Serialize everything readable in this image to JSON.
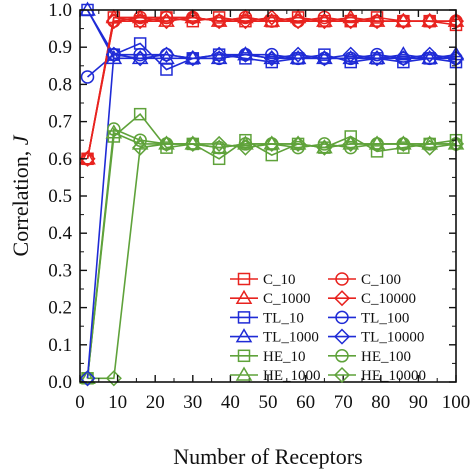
{
  "chart_data": {
    "type": "line",
    "xlabel": "Number of Receptors",
    "ylabel": "Correlation, ",
    "ylabel_italic": "J",
    "xlim": [
      0,
      100
    ],
    "ylim": [
      0.0,
      1.0
    ],
    "xticks": [
      0,
      10,
      20,
      30,
      40,
      50,
      60,
      70,
      80,
      90,
      100
    ],
    "yticks": [
      0.0,
      0.1,
      0.2,
      0.3,
      0.4,
      0.5,
      0.6,
      0.7,
      0.8,
      0.9,
      1.0
    ],
    "xtick_labels": [
      "0",
      "10",
      "20",
      "30",
      "40",
      "50",
      "60",
      "70",
      "80",
      "90",
      "100"
    ],
    "ytick_labels": [
      "0.0",
      "0.1",
      "0.2",
      "0.3",
      "0.4",
      "0.5",
      "0.6",
      "0.7",
      "0.8",
      "0.9",
      "1.0"
    ],
    "legend_position": "lower-right",
    "x": [
      2,
      9,
      16,
      23,
      30,
      37,
      44,
      51,
      58,
      65,
      72,
      79,
      86,
      93,
      100
    ],
    "series": [
      {
        "name": "C_10",
        "color": "#e8231f",
        "marker": "square",
        "values": [
          0.6,
          0.98,
          0.97,
          0.98,
          0.97,
          0.98,
          0.97,
          0.97,
          0.98,
          0.97,
          0.97,
          0.98,
          0.97,
          0.97,
          0.96
        ]
      },
      {
        "name": "C_100",
        "color": "#e8231f",
        "marker": "circle",
        "values": [
          0.6,
          0.97,
          0.98,
          0.98,
          0.98,
          0.97,
          0.98,
          0.97,
          0.97,
          0.98,
          0.97,
          0.97,
          0.97,
          0.97,
          0.97
        ]
      },
      {
        "name": "C_1000",
        "color": "#e8231f",
        "marker": "triangle",
        "values": [
          0.6,
          0.98,
          0.98,
          0.97,
          0.98,
          0.97,
          0.98,
          0.97,
          0.98,
          0.97,
          0.98,
          0.97,
          0.97,
          0.97,
          0.97
        ]
      },
      {
        "name": "C_10000",
        "color": "#e8231f",
        "marker": "diamond",
        "values": [
          0.6,
          0.97,
          0.97,
          0.97,
          0.98,
          0.97,
          0.97,
          0.98,
          0.97,
          0.97,
          0.97,
          0.97,
          0.97,
          0.97,
          0.97
        ]
      },
      {
        "name": "TL_10",
        "color": "#1f2bd6",
        "marker": "square",
        "values": [
          1.0,
          0.88,
          0.91,
          0.84,
          0.87,
          0.88,
          0.87,
          0.86,
          0.87,
          0.88,
          0.86,
          0.87,
          0.86,
          0.87,
          0.86
        ]
      },
      {
        "name": "TL_100",
        "color": "#1f2bd6",
        "marker": "circle",
        "values": [
          0.82,
          0.88,
          0.88,
          0.88,
          0.87,
          0.87,
          0.88,
          0.88,
          0.87,
          0.87,
          0.87,
          0.88,
          0.87,
          0.87,
          0.87
        ]
      },
      {
        "name": "TL_1000",
        "color": "#1f2bd6",
        "marker": "triangle",
        "values": [
          1.0,
          0.87,
          0.87,
          0.87,
          0.87,
          0.87,
          0.88,
          0.87,
          0.87,
          0.87,
          0.87,
          0.87,
          0.88,
          0.87,
          0.88
        ]
      },
      {
        "name": "TL_10000",
        "color": "#1f2bd6",
        "marker": "diamond",
        "values": [
          0.01,
          0.88,
          0.87,
          0.88,
          0.87,
          0.88,
          0.88,
          0.87,
          0.88,
          0.87,
          0.88,
          0.87,
          0.87,
          0.88,
          0.87
        ]
      },
      {
        "name": "HE_10",
        "color": "#5fa23a",
        "marker": "square",
        "values": [
          0.01,
          0.66,
          0.72,
          0.63,
          0.64,
          0.6,
          0.65,
          0.61,
          0.64,
          0.63,
          0.66,
          0.62,
          0.63,
          0.64,
          0.65
        ]
      },
      {
        "name": "HE_100",
        "color": "#5fa23a",
        "marker": "circle",
        "values": [
          0.01,
          0.68,
          0.65,
          0.64,
          0.64,
          0.63,
          0.64,
          0.64,
          0.63,
          0.64,
          0.63,
          0.64,
          0.64,
          0.64,
          0.64
        ]
      },
      {
        "name": "HE_1000",
        "color": "#5fa23a",
        "marker": "triangle",
        "values": [
          0.01,
          0.67,
          0.64,
          0.64,
          0.64,
          0.63,
          0.64,
          0.64,
          0.64,
          0.63,
          0.64,
          0.64,
          0.64,
          0.64,
          0.64
        ]
      },
      {
        "name": "HE_10000",
        "color": "#5fa23a",
        "marker": "diamond",
        "values": [
          0.01,
          0.01,
          0.63,
          0.64,
          0.64,
          0.64,
          0.63,
          0.64,
          0.64,
          0.63,
          0.64,
          0.64,
          0.64,
          0.63,
          0.64
        ]
      }
    ]
  }
}
